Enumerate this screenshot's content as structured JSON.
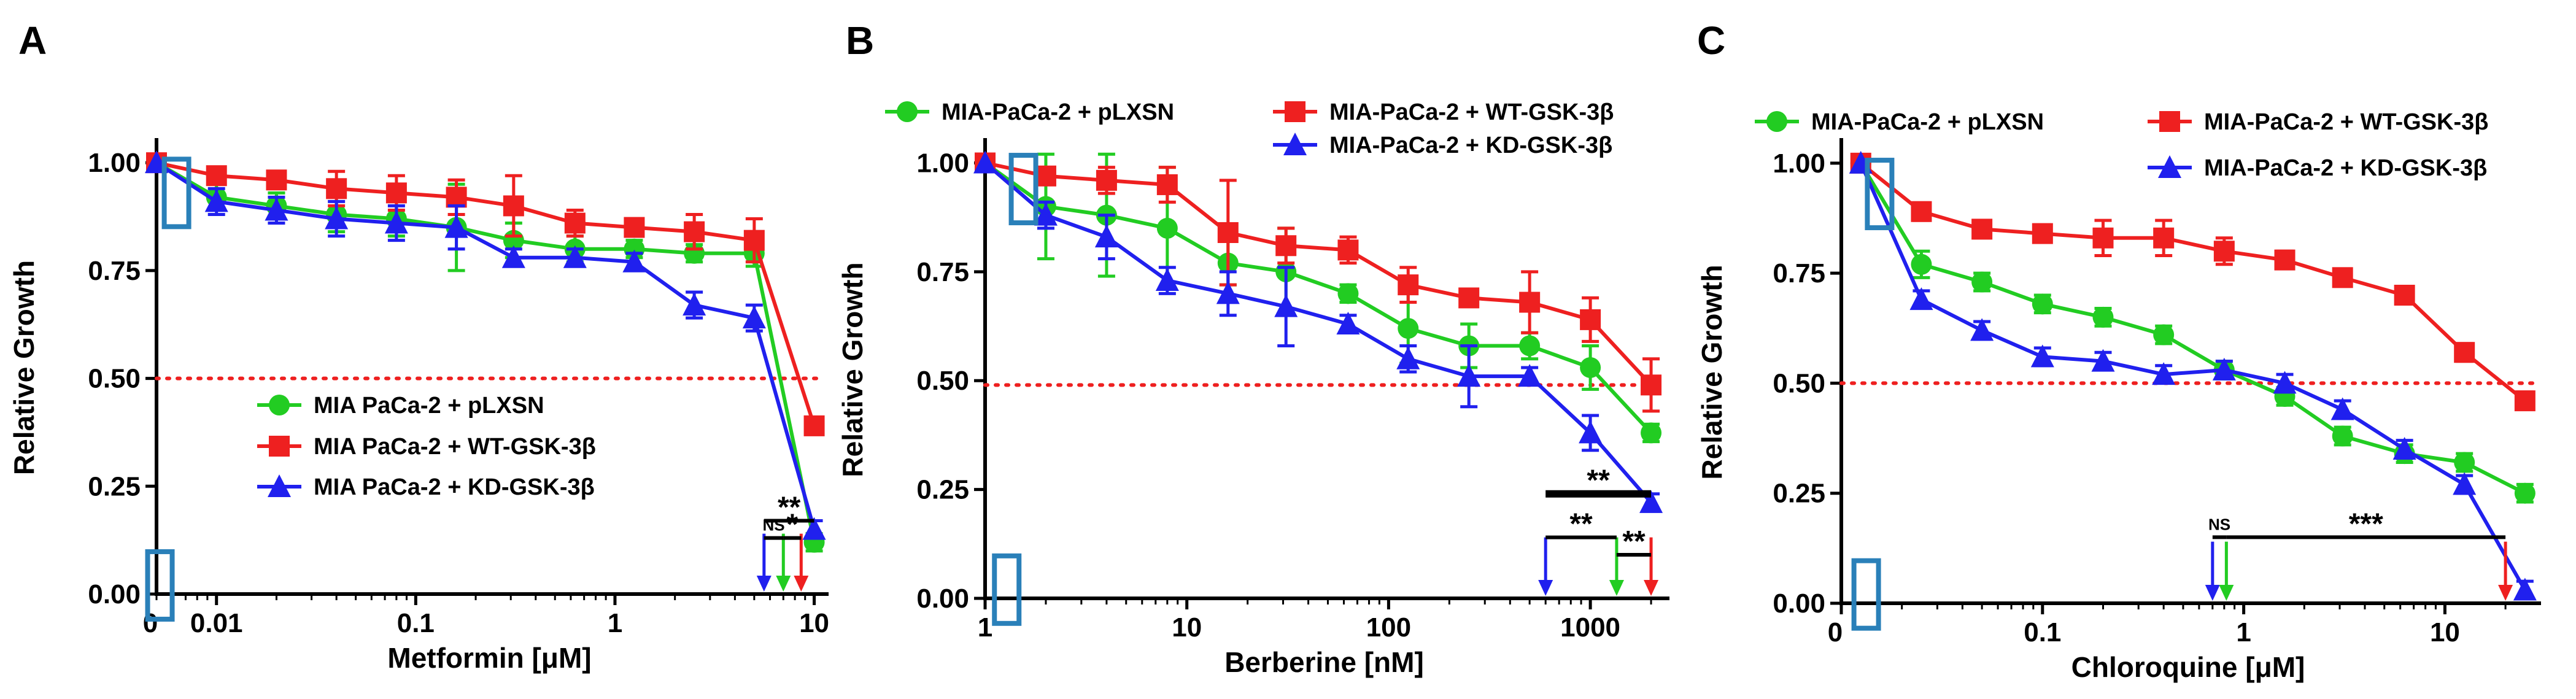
{
  "colors": {
    "pLXSN": "#22cc22",
    "WT": "#ee2020",
    "KD": "#2020ee",
    "reference": "#ee2020",
    "box": "#2a80b9"
  },
  "chart_data": [
    {
      "type": "line",
      "panel": "A",
      "xlabel": "Metformin [μM]",
      "ylabel": "Relative Growth",
      "xscale": "log",
      "xlim": [
        0.005,
        11
      ],
      "ylim": [
        0,
        1.05
      ],
      "zero_x_label": "0",
      "x_ticks": [
        {
          "v": 0.01,
          "label": "0.01"
        },
        {
          "v": 0.1,
          "label": "0.1"
        },
        {
          "v": 1,
          "label": "1"
        },
        {
          "v": 10,
          "label": "10"
        }
      ],
      "y_ticks": [
        {
          "v": 0,
          "label": "0.00"
        },
        {
          "v": 0.25,
          "label": "0.25"
        },
        {
          "v": 0.5,
          "label": "0.50"
        },
        {
          "v": 0.75,
          "label": "0.75"
        },
        {
          "v": 1,
          "label": "1.00"
        }
      ],
      "reference_line": 0.5,
      "legend_position": "bottom-center",
      "series": [
        {
          "name": "MIA PaCa-2 + pLXSN",
          "key": "pLXSN",
          "marker": "circle",
          "x": [
            0.005,
            0.01,
            0.02,
            0.04,
            0.08,
            0.16,
            0.31,
            0.63,
            1.25,
            2.5,
            5,
            10
          ],
          "y": [
            1.0,
            0.92,
            0.9,
            0.88,
            0.87,
            0.85,
            0.82,
            0.8,
            0.8,
            0.79,
            0.79,
            0.12
          ],
          "err": [
            0,
            0.03,
            0.03,
            0.04,
            0.04,
            0.1,
            0.04,
            0.03,
            0.02,
            0.02,
            0.03,
            0.02
          ]
        },
        {
          "name": "MIA PaCa-2 + WT-GSK-3β",
          "key": "WT",
          "marker": "square",
          "x": [
            0.005,
            0.01,
            0.02,
            0.04,
            0.08,
            0.16,
            0.31,
            0.63,
            1.25,
            2.5,
            5,
            10
          ],
          "y": [
            1.0,
            0.97,
            0.96,
            0.94,
            0.93,
            0.92,
            0.9,
            0.86,
            0.85,
            0.84,
            0.82,
            0.39
          ],
          "err": [
            0,
            0.02,
            0.02,
            0.04,
            0.04,
            0.04,
            0.07,
            0.03,
            0.02,
            0.04,
            0.05,
            0.02
          ]
        },
        {
          "name": "MIA PaCa-2 + KD-GSK-3β",
          "key": "KD",
          "marker": "triangle",
          "x": [
            0.005,
            0.01,
            0.02,
            0.04,
            0.08,
            0.16,
            0.31,
            0.63,
            1.25,
            2.5,
            5,
            10
          ],
          "y": [
            1.0,
            0.91,
            0.89,
            0.87,
            0.86,
            0.85,
            0.78,
            0.78,
            0.77,
            0.67,
            0.64,
            0.15
          ],
          "err": [
            0,
            0.03,
            0.03,
            0.04,
            0.04,
            0.05,
            0.02,
            0.02,
            0.02,
            0.03,
            0.03,
            0.02
          ]
        }
      ],
      "arrows": [
        {
          "key": "KD",
          "x": 5.6
        },
        {
          "key": "pLXSN",
          "x": 7.0
        },
        {
          "key": "WT",
          "x": 8.6
        }
      ],
      "significance": [
        {
          "label": "**",
          "x1": 5.6,
          "x2": 10,
          "y": 0.17
        },
        {
          "label": "NS",
          "x1": 5.6,
          "x2": 7.0,
          "y": 0.13
        },
        {
          "label": "*",
          "x1": 7.0,
          "x2": 8.6,
          "y": 0.13
        }
      ],
      "annotation_boxes": [
        {
          "x": 0.0063,
          "y": 0.93
        },
        {
          "x": 0.0052,
          "y": 0.02
        }
      ]
    },
    {
      "type": "line",
      "panel": "B",
      "xlabel": "Berberine [nM]",
      "ylabel": "Relative Growth",
      "xscale": "log",
      "xlim": [
        1,
        2300
      ],
      "ylim": [
        0,
        1.05
      ],
      "x_ticks": [
        {
          "v": 1,
          "label": "1"
        },
        {
          "v": 10,
          "label": "10"
        },
        {
          "v": 100,
          "label": "100"
        },
        {
          "v": 1000,
          "label": "1000"
        }
      ],
      "y_ticks": [
        {
          "v": 0,
          "label": "0.00"
        },
        {
          "v": 0.25,
          "label": "0.25"
        },
        {
          "v": 0.5,
          "label": "0.50"
        },
        {
          "v": 0.75,
          "label": "0.75"
        },
        {
          "v": 1,
          "label": "1.00"
        }
      ],
      "reference_line": 0.49,
      "legend_position": "top",
      "series": [
        {
          "name": "MIA-PaCa-2 + pLXSN",
          "key": "pLXSN",
          "marker": "circle",
          "x": [
            1,
            2,
            4,
            8,
            16,
            31,
            63,
            125,
            250,
            500,
            1000,
            2000
          ],
          "y": [
            1.0,
            0.9,
            0.88,
            0.85,
            0.77,
            0.75,
            0.7,
            0.62,
            0.58,
            0.58,
            0.53,
            0.38
          ],
          "err": [
            0,
            0.12,
            0.14,
            0.14,
            0.05,
            0.1,
            0.02,
            0.08,
            0.05,
            0.03,
            0.05,
            0.02
          ]
        },
        {
          "name": "MIA-PaCa-2 + WT-GSK-3β",
          "key": "WT",
          "marker": "square",
          "x": [
            1,
            2,
            4,
            8,
            16,
            31,
            63,
            125,
            250,
            500,
            1000,
            2000
          ],
          "y": [
            1.0,
            0.97,
            0.96,
            0.95,
            0.84,
            0.81,
            0.8,
            0.72,
            0.69,
            0.68,
            0.64,
            0.49
          ],
          "err": [
            0,
            0.02,
            0.03,
            0.04,
            0.12,
            0.04,
            0.03,
            0.04,
            0.02,
            0.07,
            0.05,
            0.06
          ]
        },
        {
          "name": "MIA-PaCa-2 + KD-GSK-3β",
          "key": "KD",
          "marker": "triangle",
          "x": [
            1,
            2,
            4,
            8,
            16,
            31,
            63,
            125,
            250,
            500,
            1000,
            2000
          ],
          "y": [
            1.0,
            0.88,
            0.83,
            0.73,
            0.7,
            0.67,
            0.63,
            0.55,
            0.51,
            0.51,
            0.38,
            0.22
          ],
          "err": [
            0,
            0.03,
            0.05,
            0.03,
            0.05,
            0.09,
            0.02,
            0.03,
            0.07,
            0.02,
            0.04,
            0.02
          ]
        }
      ],
      "arrows": [
        {
          "key": "KD",
          "x": 600
        },
        {
          "key": "pLXSN",
          "x": 1350
        },
        {
          "key": "WT",
          "x": 2000
        }
      ],
      "significance": [
        {
          "label": "**",
          "x1": 600,
          "x2": 2000,
          "y": 0.24,
          "thick": true
        },
        {
          "label": "**",
          "x1": 600,
          "x2": 1350,
          "y": 0.14
        },
        {
          "label": "**",
          "x1": 1350,
          "x2": 2000,
          "y": 0.1
        }
      ],
      "annotation_boxes": [
        {
          "x": 1.55,
          "y": 0.94
        },
        {
          "x": 1.28,
          "y": 0.02
        }
      ]
    },
    {
      "type": "line",
      "panel": "C",
      "xlabel": "Chloroquine [μM]",
      "ylabel": "Relative Growth",
      "xscale": "log",
      "xlim": [
        0.01,
        28
      ],
      "ylim": [
        0,
        1.05
      ],
      "zero_x_label": "0",
      "x_ticks": [
        {
          "v": 0.1,
          "label": "0.1"
        },
        {
          "v": 1,
          "label": "1"
        },
        {
          "v": 10,
          "label": "10"
        }
      ],
      "y_ticks": [
        {
          "v": 0,
          "label": "0.00"
        },
        {
          "v": 0.25,
          "label": "0.25"
        },
        {
          "v": 0.5,
          "label": "0.50"
        },
        {
          "v": 0.75,
          "label": "0.75"
        },
        {
          "v": 1,
          "label": "1.00"
        }
      ],
      "reference_line": 0.5,
      "legend_position": "top",
      "series": [
        {
          "name": "MIA-PaCa-2 + pLXSN",
          "key": "pLXSN",
          "marker": "circle",
          "x": [
            0.0125,
            0.025,
            0.05,
            0.1,
            0.2,
            0.4,
            0.8,
            1.6,
            3.1,
            6.3,
            12.5,
            25
          ],
          "y": [
            1.0,
            0.77,
            0.73,
            0.68,
            0.65,
            0.61,
            0.53,
            0.47,
            0.38,
            0.34,
            0.32,
            0.25
          ],
          "err": [
            0,
            0.03,
            0.02,
            0.02,
            0.02,
            0.02,
            0.02,
            0.02,
            0.02,
            0.02,
            0.02,
            0.02
          ]
        },
        {
          "name": "MIA-PaCa-2 + WT-GSK-3β",
          "key": "WT",
          "marker": "square",
          "x": [
            0.0125,
            0.025,
            0.05,
            0.1,
            0.2,
            0.4,
            0.8,
            1.6,
            3.1,
            6.3,
            12.5,
            25
          ],
          "y": [
            1.0,
            0.89,
            0.85,
            0.84,
            0.83,
            0.83,
            0.8,
            0.78,
            0.74,
            0.7,
            0.57,
            0.46
          ],
          "err": [
            0,
            0.02,
            0.02,
            0.02,
            0.04,
            0.04,
            0.03,
            0.02,
            0.02,
            0.02,
            0.02,
            0.02
          ]
        },
        {
          "name": "MIA-PaCa-2 + KD-GSK-3β",
          "key": "KD",
          "marker": "triangle",
          "x": [
            0.0125,
            0.025,
            0.05,
            0.1,
            0.2,
            0.4,
            0.8,
            1.6,
            3.1,
            6.3,
            12.5,
            25
          ],
          "y": [
            1.0,
            0.69,
            0.62,
            0.56,
            0.55,
            0.52,
            0.53,
            0.5,
            0.44,
            0.35,
            0.27,
            0.03
          ],
          "err": [
            0,
            0.02,
            0.02,
            0.02,
            0.02,
            0.02,
            0.02,
            0.02,
            0.02,
            0.02,
            0.02,
            0.02
          ]
        }
      ],
      "arrows": [
        {
          "key": "KD",
          "x": 0.7
        },
        {
          "key": "pLXSN",
          "x": 0.82
        },
        {
          "key": "WT",
          "x": 20
        }
      ],
      "significance": [
        {
          "label": "NS",
          "x1": 0.7,
          "x2": 0.82,
          "y": 0.15
        },
        {
          "label": "***",
          "x1": 0.82,
          "x2": 20,
          "y": 0.15
        }
      ],
      "annotation_boxes": [
        {
          "x": 0.0155,
          "y": 0.93
        },
        {
          "x": 0.0133,
          "y": 0.02
        }
      ]
    }
  ]
}
